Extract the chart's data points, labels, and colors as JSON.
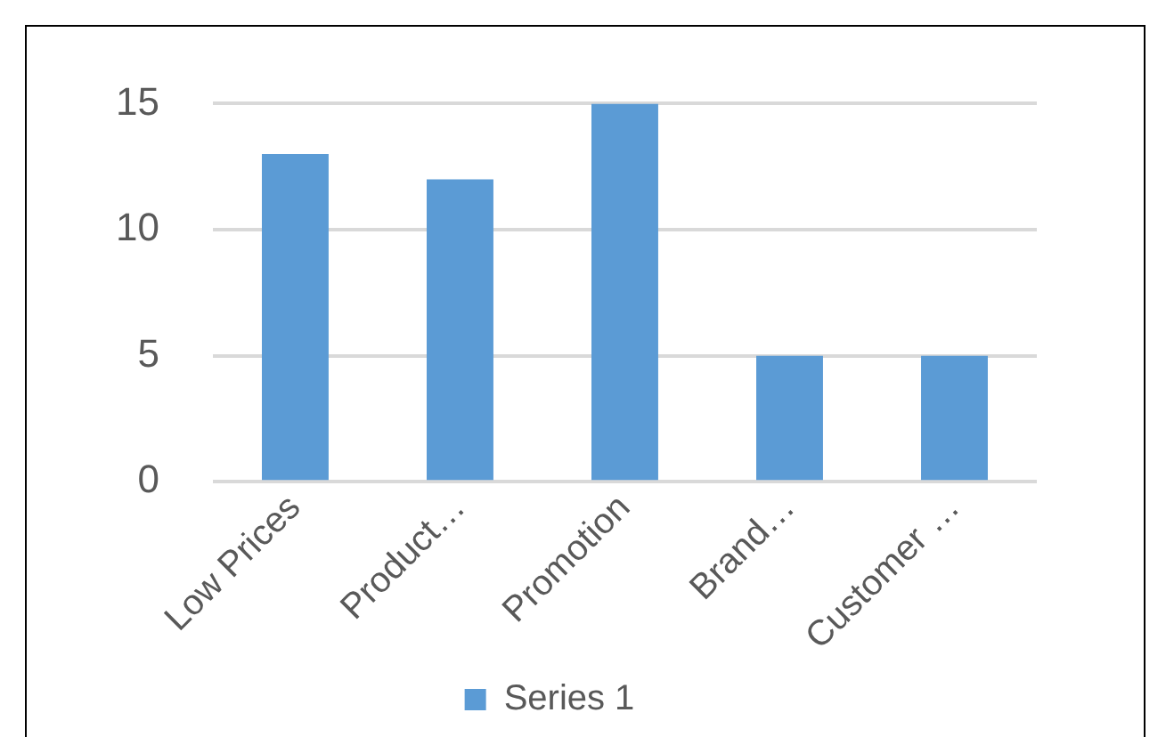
{
  "chart_data": {
    "type": "bar",
    "categories": [
      "Low Prices",
      "Product…",
      "Promotion",
      "Brand…",
      "Customer …"
    ],
    "series": [
      {
        "name": "Series 1",
        "color": "#5b9bd5",
        "values": [
          13,
          12,
          15,
          5,
          5
        ]
      }
    ],
    "ylim": [
      0,
      15
    ],
    "yticks": [
      0,
      5,
      10,
      15
    ],
    "grid": "y",
    "legend": "bottom"
  }
}
